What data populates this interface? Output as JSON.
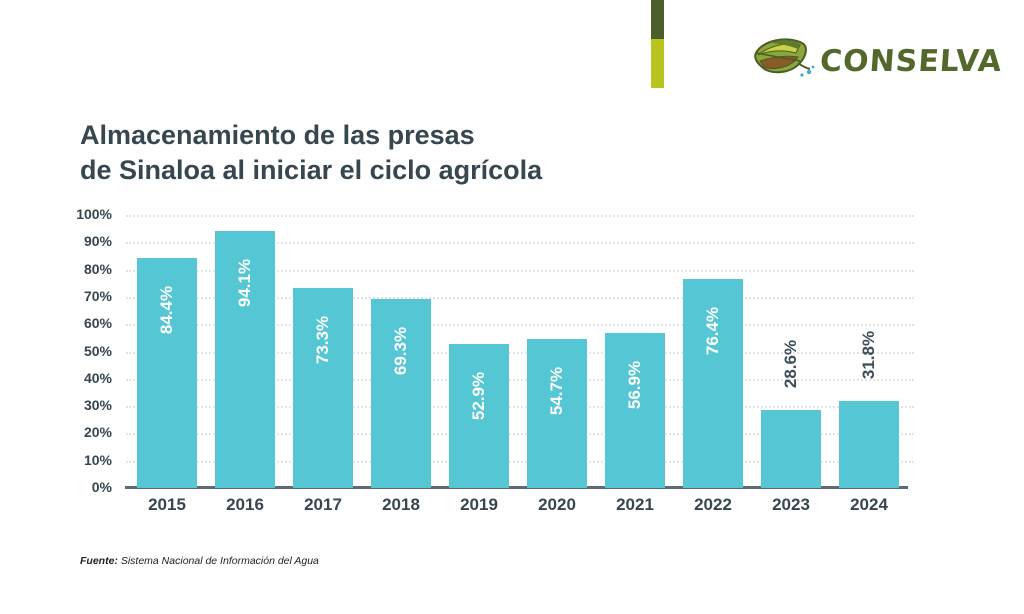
{
  "logo": {
    "text": "CONSELVA",
    "text_color": "#55682b",
    "accent_dark": "#4a5e2c",
    "accent_lime": "#b9c41f"
  },
  "title": {
    "line1": "Almacenamiento de las presas",
    "line2": "de Sinaloa al iniciar el ciclo agrícola"
  },
  "source": {
    "label": "Fuente:",
    "text": " Sistema Nacional de Información del Agua"
  },
  "chart_data": {
    "type": "bar",
    "title": "Almacenamiento de las presas de Sinaloa al iniciar el ciclo agrícola",
    "categories": [
      "2015",
      "2016",
      "2017",
      "2018",
      "2019",
      "2020",
      "2021",
      "2022",
      "2023",
      "2024"
    ],
    "values": [
      84.4,
      94.1,
      73.3,
      69.3,
      52.9,
      54.7,
      56.9,
      76.4,
      28.6,
      31.8
    ],
    "value_labels": [
      "84.4%",
      "94.1%",
      "73.3%",
      "69.3%",
      "52.9%",
      "54.7%",
      "56.9%",
      "76.4%",
      "28.6%",
      "31.8%"
    ],
    "xlabel": "",
    "ylabel": "",
    "ylim": [
      0,
      100
    ],
    "ytick_step": 10,
    "ytick_labels": [
      "0%",
      "10%",
      "20%",
      "30%",
      "40%",
      "50%",
      "60%",
      "70%",
      "80%",
      "90%",
      "100%"
    ],
    "grid": "horizontal-dotted",
    "legend": "none",
    "bar_color": "#55c6d3",
    "label_color_inside": "#ffffff",
    "label_color_outside": "#3c4d57",
    "label_inside_threshold": 40
  }
}
